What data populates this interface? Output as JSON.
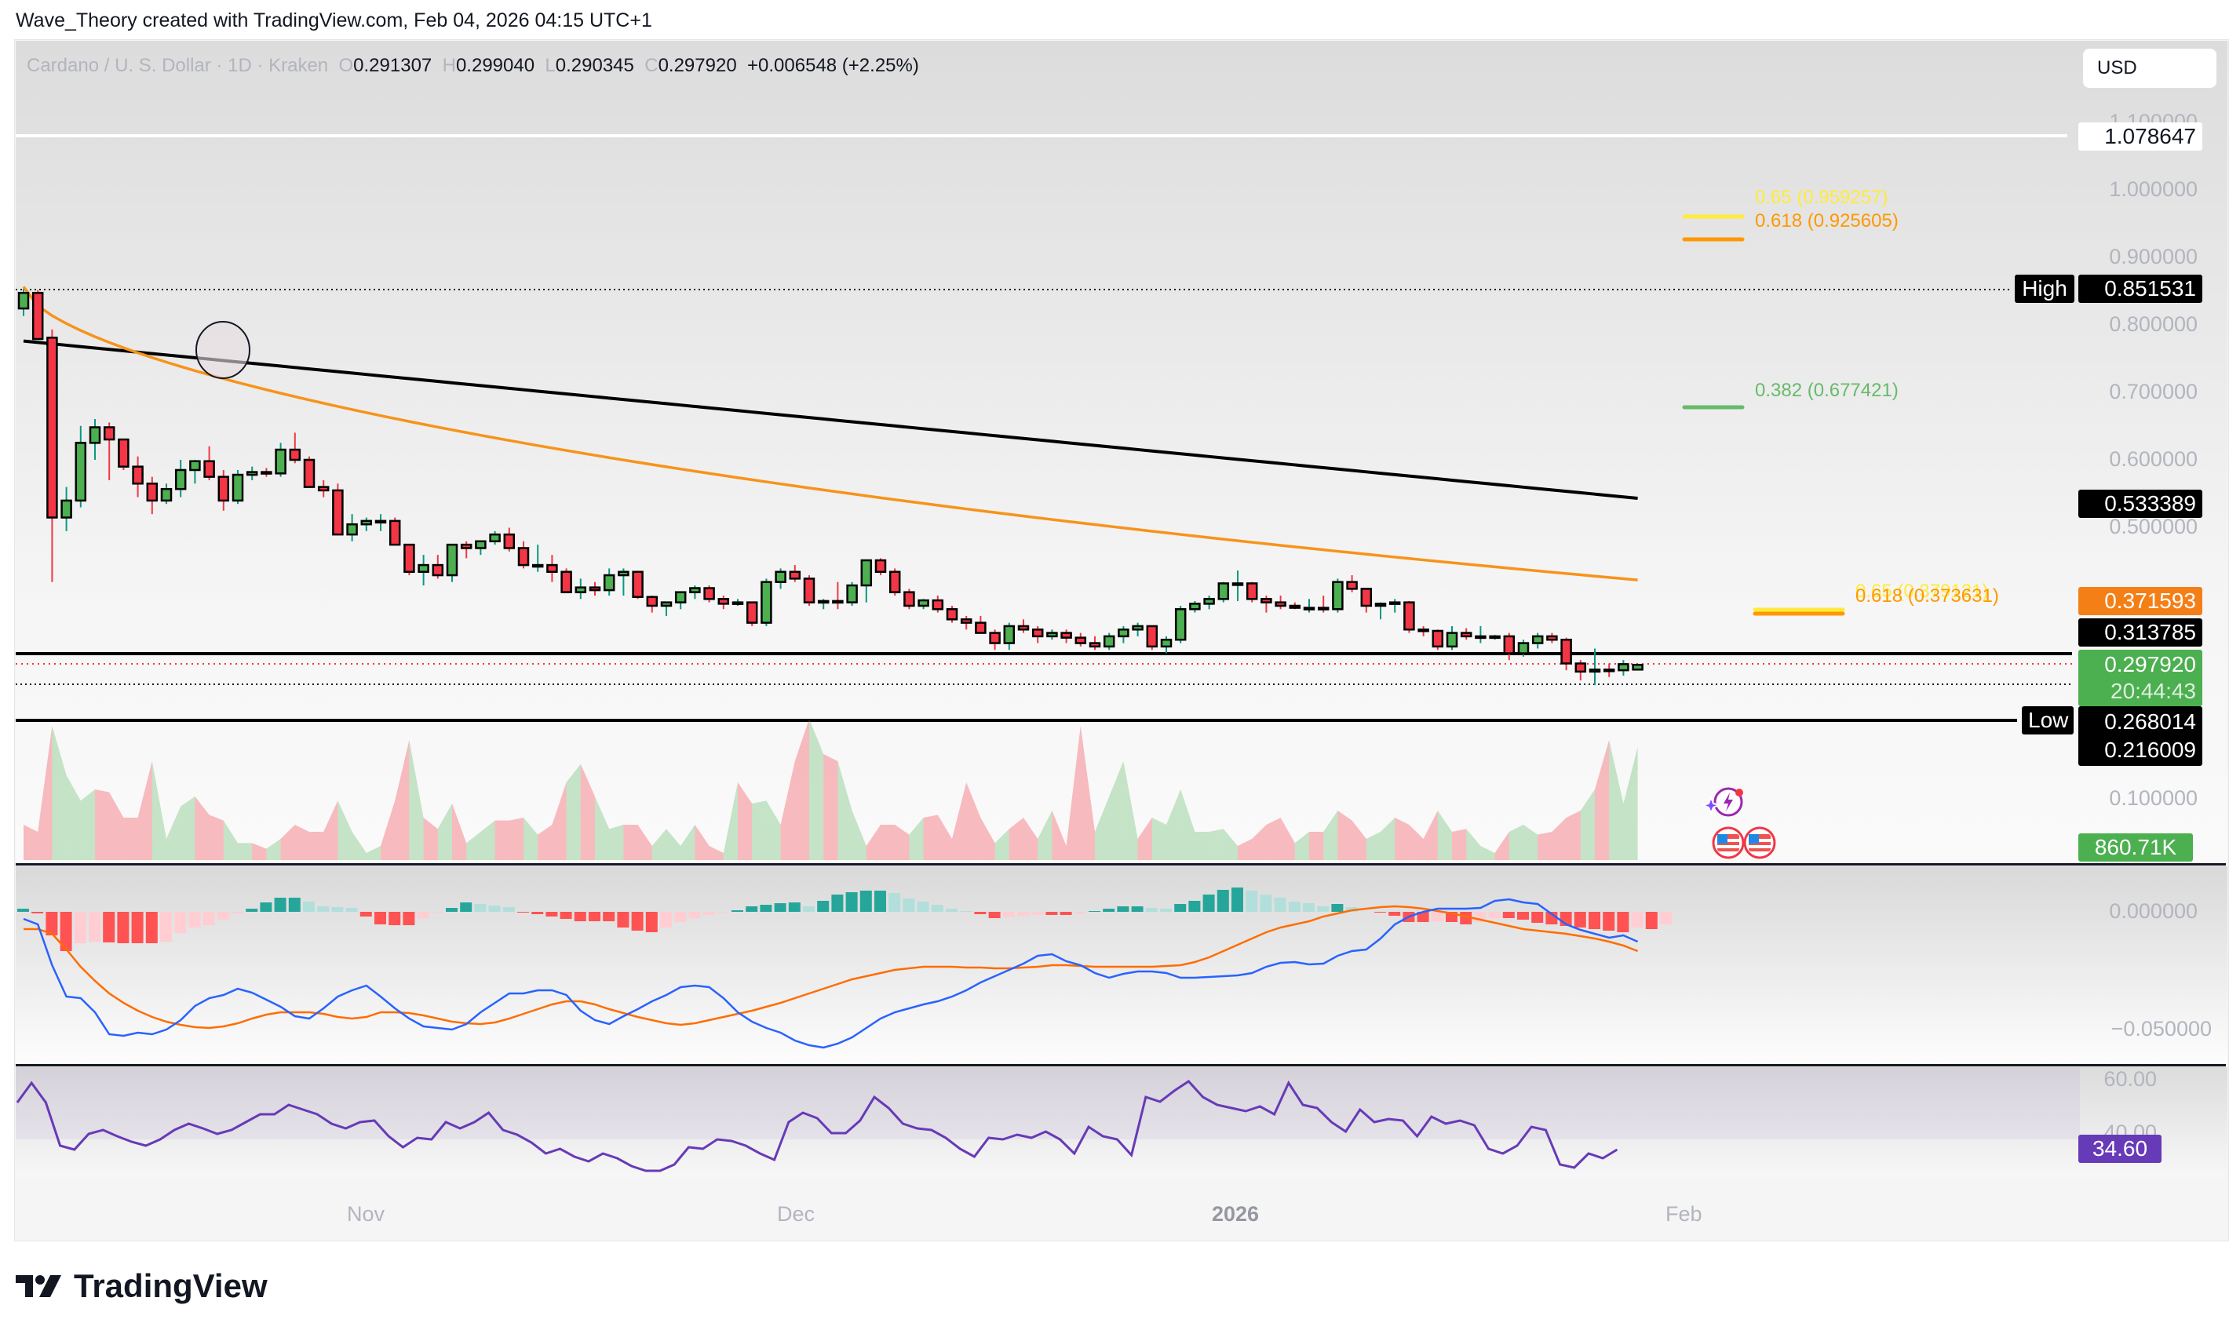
{
  "header": {
    "credit": "Wave_Theory created with TradingView.com, Feb 04, 2026 04:15 UTC+1"
  },
  "legend": {
    "symbol": "Cardano / U. S. Dollar · 1D · Kraken",
    "o_label": "O",
    "o": "0.291307",
    "h_label": "H",
    "h": "0.299040",
    "l_label": "L",
    "l": "0.290345",
    "c_label": "C",
    "c": "0.297920",
    "change": "+0.006548 (+2.25%)"
  },
  "currency_button": "USD",
  "price_axis": {
    "ticks": [
      "1.100000",
      "1.000000",
      "0.900000",
      "0.800000",
      "0.700000",
      "0.600000",
      "0.500000",
      "0.100000"
    ],
    "tags": {
      "line_top": "1.078647",
      "high_label": "High",
      "high": "0.851531",
      "ma200": "0.533389",
      "ma50": "0.371593",
      "support": "0.313785",
      "last_price": "0.297920",
      "countdown": "20:44:43",
      "low_label": "Low",
      "low": "0.268014",
      "support2": "0.216009",
      "volume": "860.71K"
    }
  },
  "macd_axis": {
    "ticks": [
      "0.000000",
      "−0.050000"
    ]
  },
  "rsi_axis": {
    "ticks": [
      "60.00",
      "40.00"
    ],
    "value": "34.60"
  },
  "time_axis": [
    "Nov",
    "Dec",
    "2026",
    "Feb"
  ],
  "fib_labels": {
    "upper_065": "0.65 (0.959257)",
    "upper_0618": "0.618 (0.925605)",
    "upper_0382": "0.382 (0.677421)",
    "lower_065": "0.65 (0.379121)",
    "lower_0618": "0.618 (0.373631)"
  },
  "brand": "TradingView",
  "colors": {
    "up": "#4caf50",
    "down": "#f23645",
    "ma50": "#f7931a",
    "ma200": "#000000",
    "macd": "#2962ff",
    "signal": "#ff6d00",
    "rsi": "#673ab7",
    "fib065": "#ffeb3b",
    "fib0618": "#ff9800",
    "fib0382": "#66bb6a"
  },
  "chart_data": {
    "type": "candlestick",
    "title": "Cardano / U. S. Dollar · 1D · Kraken",
    "ylabel": "USD",
    "ylim": [
      0.08,
      1.12
    ],
    "x_ticks": [
      "Nov",
      "Dec",
      "2026",
      "Feb"
    ],
    "candles": [
      [
        0.823,
        0.852,
        0.812,
        0.846
      ],
      [
        0.846,
        0.85,
        0.79,
        0.778
      ],
      [
        0.78,
        0.792,
        0.42,
        0.515
      ],
      [
        0.515,
        0.56,
        0.495,
        0.54
      ],
      [
        0.54,
        0.65,
        0.53,
        0.625
      ],
      [
        0.625,
        0.66,
        0.6,
        0.648
      ],
      [
        0.648,
        0.655,
        0.57,
        0.63
      ],
      [
        0.63,
        0.625,
        0.585,
        0.59
      ],
      [
        0.59,
        0.605,
        0.545,
        0.565
      ],
      [
        0.565,
        0.575,
        0.52,
        0.54
      ],
      [
        0.54,
        0.565,
        0.535,
        0.557
      ],
      [
        0.557,
        0.6,
        0.545,
        0.585
      ],
      [
        0.585,
        0.6,
        0.565,
        0.598
      ],
      [
        0.598,
        0.62,
        0.57,
        0.575
      ],
      [
        0.575,
        0.585,
        0.525,
        0.54
      ],
      [
        0.54,
        0.585,
        0.535,
        0.578
      ],
      [
        0.578,
        0.59,
        0.57,
        0.582
      ],
      [
        0.582,
        0.588,
        0.575,
        0.58
      ],
      [
        0.58,
        0.625,
        0.575,
        0.615
      ],
      [
        0.615,
        0.64,
        0.595,
        0.6
      ],
      [
        0.6,
        0.605,
        0.56,
        0.56
      ],
      [
        0.56,
        0.57,
        0.545,
        0.555
      ],
      [
        0.555,
        0.565,
        0.49,
        0.49
      ],
      [
        0.49,
        0.52,
        0.48,
        0.505
      ],
      [
        0.505,
        0.515,
        0.495,
        0.51
      ],
      [
        0.51,
        0.52,
        0.495,
        0.51
      ],
      [
        0.51,
        0.515,
        0.475,
        0.475
      ],
      [
        0.475,
        0.475,
        0.43,
        0.435
      ],
      [
        0.435,
        0.46,
        0.415,
        0.445
      ],
      [
        0.445,
        0.46,
        0.425,
        0.43
      ],
      [
        0.43,
        0.475,
        0.42,
        0.475
      ],
      [
        0.475,
        0.48,
        0.455,
        0.47
      ],
      [
        0.47,
        0.48,
        0.46,
        0.48
      ],
      [
        0.48,
        0.495,
        0.475,
        0.49
      ],
      [
        0.49,
        0.5,
        0.465,
        0.47
      ],
      [
        0.47,
        0.48,
        0.44,
        0.445
      ],
      [
        0.445,
        0.475,
        0.435,
        0.445
      ],
      [
        0.445,
        0.46,
        0.42,
        0.435
      ],
      [
        0.435,
        0.44,
        0.405,
        0.405
      ],
      [
        0.405,
        0.425,
        0.395,
        0.412
      ],
      [
        0.412,
        0.42,
        0.4,
        0.408
      ],
      [
        0.408,
        0.44,
        0.4,
        0.43
      ],
      [
        0.43,
        0.44,
        0.4,
        0.435
      ],
      [
        0.435,
        0.425,
        0.395,
        0.398
      ],
      [
        0.398,
        0.4,
        0.375,
        0.385
      ],
      [
        0.385,
        0.39,
        0.37,
        0.39
      ],
      [
        0.39,
        0.405,
        0.38,
        0.405
      ],
      [
        0.405,
        0.415,
        0.395,
        0.411
      ],
      [
        0.411,
        0.415,
        0.39,
        0.395
      ],
      [
        0.395,
        0.4,
        0.38,
        0.388
      ],
      [
        0.388,
        0.395,
        0.385,
        0.39
      ],
      [
        0.39,
        0.39,
        0.355,
        0.36
      ],
      [
        0.36,
        0.425,
        0.355,
        0.42
      ],
      [
        0.42,
        0.44,
        0.41,
        0.435
      ],
      [
        0.435,
        0.445,
        0.42,
        0.425
      ],
      [
        0.425,
        0.43,
        0.385,
        0.39
      ],
      [
        0.39,
        0.395,
        0.38,
        0.392
      ],
      [
        0.392,
        0.42,
        0.38,
        0.39
      ],
      [
        0.39,
        0.42,
        0.385,
        0.415
      ],
      [
        0.415,
        0.445,
        0.39,
        0.452
      ],
      [
        0.452,
        0.455,
        0.43,
        0.435
      ],
      [
        0.435,
        0.44,
        0.4,
        0.405
      ],
      [
        0.405,
        0.41,
        0.38,
        0.385
      ],
      [
        0.385,
        0.395,
        0.38,
        0.393
      ],
      [
        0.393,
        0.4,
        0.375,
        0.38
      ],
      [
        0.38,
        0.385,
        0.36,
        0.365
      ],
      [
        0.365,
        0.37,
        0.35,
        0.36
      ],
      [
        0.36,
        0.37,
        0.345,
        0.345
      ],
      [
        0.345,
        0.35,
        0.32,
        0.33
      ],
      [
        0.33,
        0.36,
        0.32,
        0.355
      ],
      [
        0.355,
        0.365,
        0.345,
        0.35
      ],
      [
        0.35,
        0.355,
        0.33,
        0.34
      ],
      [
        0.34,
        0.35,
        0.335,
        0.345
      ],
      [
        0.345,
        0.35,
        0.33,
        0.338
      ],
      [
        0.338,
        0.345,
        0.325,
        0.33
      ],
      [
        0.33,
        0.34,
        0.32,
        0.325
      ],
      [
        0.325,
        0.345,
        0.32,
        0.34
      ],
      [
        0.34,
        0.355,
        0.33,
        0.35
      ],
      [
        0.35,
        0.36,
        0.34,
        0.355
      ],
      [
        0.355,
        0.34,
        0.32,
        0.325
      ],
      [
        0.325,
        0.34,
        0.315,
        0.335
      ],
      [
        0.335,
        0.385,
        0.33,
        0.38
      ],
      [
        0.38,
        0.392,
        0.375,
        0.388
      ],
      [
        0.388,
        0.4,
        0.38,
        0.395
      ],
      [
        0.395,
        0.42,
        0.39,
        0.418
      ],
      [
        0.418,
        0.437,
        0.392,
        0.418
      ],
      [
        0.418,
        0.42,
        0.39,
        0.395
      ],
      [
        0.395,
        0.4,
        0.375,
        0.39
      ],
      [
        0.39,
        0.4,
        0.38,
        0.385
      ],
      [
        0.385,
        0.39,
        0.38,
        0.382
      ],
      [
        0.382,
        0.395,
        0.375,
        0.382
      ],
      [
        0.382,
        0.4,
        0.375,
        0.38
      ],
      [
        0.38,
        0.425,
        0.375,
        0.42
      ],
      [
        0.42,
        0.43,
        0.405,
        0.41
      ],
      [
        0.41,
        0.41,
        0.375,
        0.385
      ],
      [
        0.385,
        0.39,
        0.365,
        0.388
      ],
      [
        0.388,
        0.395,
        0.375,
        0.39
      ],
      [
        0.39,
        0.392,
        0.345,
        0.35
      ],
      [
        0.35,
        0.355,
        0.34,
        0.348
      ],
      [
        0.348,
        0.35,
        0.32,
        0.325
      ],
      [
        0.325,
        0.355,
        0.32,
        0.345
      ],
      [
        0.345,
        0.352,
        0.335,
        0.34
      ],
      [
        0.34,
        0.355,
        0.33,
        0.34
      ],
      [
        0.34,
        0.342,
        0.335,
        0.34
      ],
      [
        0.34,
        0.345,
        0.305,
        0.315
      ],
      [
        0.315,
        0.335,
        0.31,
        0.33
      ],
      [
        0.33,
        0.345,
        0.322,
        0.34
      ],
      [
        0.34,
        0.345,
        0.33,
        0.335
      ],
      [
        0.335,
        0.338,
        0.29,
        0.3
      ],
      [
        0.3,
        0.305,
        0.275,
        0.288
      ],
      [
        0.288,
        0.322,
        0.268,
        0.291
      ],
      [
        0.291,
        0.3,
        0.28,
        0.29
      ],
      [
        0.29,
        0.305,
        0.282,
        0.299
      ],
      [
        0.291,
        0.299,
        0.29,
        0.298
      ]
    ],
    "ma200_label": "0.533389",
    "ma50_label": "0.371593",
    "horizontal_levels": [
      1.078647,
      0.851531,
      0.313785,
      0.29792,
      0.268014,
      0.216009
    ],
    "fib_levels": [
      {
        "ratio": 0.65,
        "price": 0.959257
      },
      {
        "ratio": 0.618,
        "price": 0.925605
      },
      {
        "ratio": 0.382,
        "price": 0.677421
      },
      {
        "ratio": 0.65,
        "price": 0.379121
      },
      {
        "ratio": 0.618,
        "price": 0.373631
      }
    ],
    "volume_last": "860.71K",
    "macd_ylim": [
      -0.06,
      0.01
    ],
    "rsi_last": 34.6,
    "rsi_ticks": [
      60,
      40
    ]
  }
}
